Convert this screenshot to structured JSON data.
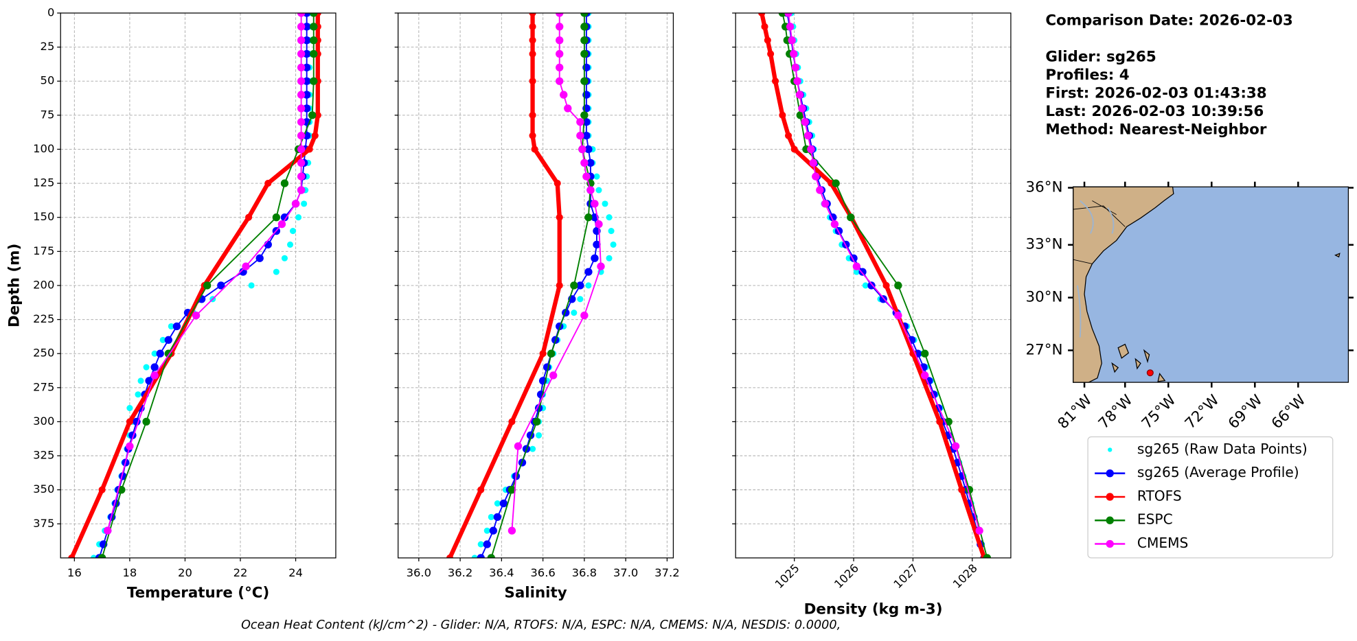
{
  "chart_data": [
    {
      "type": "line",
      "xlabel": "Temperature (°C)",
      "ylabel": "Depth (m)",
      "xlim": [
        15.5,
        25.45
      ],
      "ylim": [
        400,
        0
      ],
      "grid": true,
      "xticks": [
        16,
        18,
        20,
        22,
        24
      ],
      "yticks": [
        0,
        25,
        50,
        75,
        100,
        125,
        150,
        175,
        200,
        225,
        250,
        275,
        300,
        325,
        350,
        375
      ],
      "series": [
        {
          "name": "sg265 (Raw Data Points)",
          "color": "#00ffff",
          "y": [
            0,
            10,
            20,
            30,
            40,
            50,
            60,
            70,
            80,
            90,
            100,
            110,
            120,
            130,
            140,
            150,
            160,
            170,
            180,
            190,
            200,
            210,
            220,
            230,
            240,
            250,
            260,
            270,
            280,
            290,
            300,
            310,
            320,
            330,
            340,
            350,
            360,
            370,
            380,
            390,
            400
          ],
          "values": [
            24.5,
            24.5,
            24.5,
            24.5,
            24.5,
            24.5,
            24.5,
            24.5,
            24.5,
            24.5,
            24.5,
            24.45,
            24.4,
            24.35,
            24.3,
            24.1,
            23.9,
            23.8,
            23.6,
            23.3,
            22.4,
            21.0,
            20.3,
            19.5,
            19.2,
            18.9,
            18.6,
            18.4,
            18.3,
            18.0,
            18.1,
            18.0,
            17.9,
            17.8,
            17.7,
            17.55,
            17.45,
            17.3,
            17.1,
            16.9,
            16.7
          ]
        },
        {
          "name": "sg265 (Average Profile)",
          "color": "#0000ff",
          "y": [
            0,
            10,
            20,
            30,
            40,
            50,
            60,
            70,
            80,
            90,
            100,
            110,
            120,
            130,
            140,
            150,
            160,
            170,
            180,
            190,
            200,
            210,
            220,
            230,
            240,
            250,
            260,
            270,
            280,
            290,
            300,
            310,
            320,
            330,
            340,
            350,
            360,
            370,
            380,
            390,
            400
          ],
          "values": [
            24.4,
            24.4,
            24.4,
            24.4,
            24.4,
            24.4,
            24.4,
            24.4,
            24.4,
            24.4,
            24.35,
            24.3,
            24.25,
            24.2,
            24.0,
            23.6,
            23.3,
            23.0,
            22.7,
            22.1,
            21.3,
            20.6,
            20.1,
            19.7,
            19.4,
            19.1,
            18.9,
            18.7,
            18.55,
            18.4,
            18.25,
            18.1,
            17.95,
            17.85,
            17.75,
            17.6,
            17.5,
            17.35,
            17.2,
            17.05,
            16.9
          ]
        },
        {
          "name": "RTOFS",
          "color": "#ff0000",
          "y": [
            0,
            10,
            20,
            30,
            50,
            75,
            90,
            100,
            125,
            150,
            200,
            250,
            300,
            350,
            400
          ],
          "values": [
            24.8,
            24.8,
            24.8,
            24.8,
            24.8,
            24.8,
            24.7,
            24.5,
            23.0,
            22.3,
            20.7,
            19.5,
            18.0,
            17.0,
            15.9
          ]
        },
        {
          "name": "ESPC",
          "color": "#008000",
          "y": [
            0,
            10,
            20,
            30,
            50,
            75,
            100,
            125,
            150,
            200,
            250,
            300,
            350,
            400
          ],
          "values": [
            24.65,
            24.65,
            24.65,
            24.65,
            24.65,
            24.6,
            24.1,
            23.6,
            23.3,
            20.8,
            19.4,
            18.6,
            17.7,
            17.0
          ]
        },
        {
          "name": "CMEMS",
          "color": "#ff00ff",
          "y": [
            0,
            10,
            20,
            30,
            40,
            50,
            60,
            70,
            80,
            90,
            100,
            110,
            120,
            130,
            140,
            155,
            186,
            222,
            266,
            318,
            380
          ],
          "values": [
            24.2,
            24.2,
            24.2,
            24.2,
            24.2,
            24.2,
            24.2,
            24.2,
            24.2,
            24.2,
            24.2,
            24.2,
            24.2,
            24.2,
            24.0,
            23.5,
            22.2,
            20.4,
            18.9,
            18.0,
            17.2
          ]
        }
      ]
    },
    {
      "type": "line",
      "xlabel": "Salinity",
      "xlim": [
        35.9,
        37.23
      ],
      "ylim": [
        400,
        0
      ],
      "grid": true,
      "xticks": [
        {
          "value": 36,
          "label": "36.0"
        },
        36.2,
        36.4,
        36.6,
        36.8,
        {
          "value": 37,
          "label": "37.0"
        },
        37.2
      ],
      "yticks": [
        0,
        25,
        50,
        75,
        100,
        125,
        150,
        175,
        200,
        225,
        250,
        275,
        300,
        325,
        350,
        375
      ],
      "series": [
        {
          "name": "sg265 (Raw Data Points)",
          "color": "#00ffff",
          "y": [
            0,
            10,
            20,
            30,
            40,
            50,
            60,
            70,
            80,
            90,
            100,
            110,
            120,
            130,
            140,
            150,
            160,
            170,
            180,
            190,
            200,
            210,
            220,
            230,
            240,
            250,
            260,
            270,
            280,
            290,
            300,
            310,
            320,
            330,
            340,
            350,
            360,
            370,
            380,
            390,
            400
          ],
          "values": [
            36.82,
            36.82,
            36.82,
            36.82,
            36.82,
            36.82,
            36.82,
            36.82,
            36.82,
            36.82,
            36.84,
            36.84,
            36.86,
            36.87,
            36.9,
            36.92,
            36.93,
            36.94,
            36.92,
            36.88,
            36.82,
            36.78,
            36.75,
            36.7,
            36.67,
            36.65,
            36.63,
            36.62,
            36.6,
            36.6,
            36.58,
            36.58,
            36.55,
            36.5,
            36.46,
            36.42,
            36.38,
            36.35,
            36.33,
            36.3,
            36.27
          ]
        },
        {
          "name": "sg265 (Average Profile)",
          "color": "#0000ff",
          "y": [
            0,
            10,
            20,
            30,
            40,
            50,
            60,
            70,
            80,
            90,
            100,
            110,
            120,
            130,
            140,
            150,
            160,
            170,
            180,
            190,
            200,
            210,
            220,
            230,
            240,
            250,
            260,
            270,
            280,
            290,
            300,
            310,
            320,
            330,
            340,
            350,
            360,
            370,
            380,
            390,
            400
          ],
          "values": [
            36.81,
            36.81,
            36.81,
            36.81,
            36.81,
            36.81,
            36.81,
            36.81,
            36.81,
            36.81,
            36.82,
            36.83,
            36.83,
            36.83,
            36.83,
            36.85,
            36.86,
            36.86,
            36.85,
            36.82,
            36.78,
            36.74,
            36.71,
            36.68,
            36.66,
            36.64,
            36.62,
            36.6,
            36.59,
            36.58,
            36.56,
            36.54,
            36.52,
            36.5,
            36.47,
            36.44,
            36.41,
            36.38,
            36.36,
            36.33,
            36.3
          ]
        },
        {
          "name": "RTOFS",
          "color": "#ff0000",
          "y": [
            0,
            10,
            20,
            30,
            50,
            75,
            90,
            100,
            125,
            150,
            200,
            250,
            300,
            350,
            400
          ],
          "values": [
            36.55,
            36.55,
            36.55,
            36.55,
            36.55,
            36.55,
            36.55,
            36.56,
            36.67,
            36.68,
            36.68,
            36.6,
            36.45,
            36.3,
            36.15
          ]
        },
        {
          "name": "ESPC",
          "color": "#008000",
          "y": [
            0,
            10,
            20,
            30,
            50,
            75,
            100,
            125,
            150,
            200,
            250,
            300,
            350,
            400
          ],
          "values": [
            36.8,
            36.8,
            36.8,
            36.8,
            36.8,
            36.8,
            36.79,
            36.83,
            36.82,
            36.75,
            36.64,
            36.57,
            36.45,
            36.35
          ]
        },
        {
          "name": "CMEMS",
          "color": "#ff00ff",
          "y": [
            0,
            10,
            20,
            30,
            40,
            50,
            60,
            70,
            80,
            90,
            100,
            110,
            120,
            130,
            140,
            155,
            186,
            222,
            266,
            318,
            380
          ],
          "values": [
            36.68,
            36.68,
            36.68,
            36.68,
            36.68,
            36.68,
            36.7,
            36.72,
            36.78,
            36.78,
            36.79,
            36.8,
            36.81,
            36.83,
            36.85,
            36.87,
            36.88,
            36.8,
            36.65,
            36.48,
            36.45
          ]
        }
      ]
    },
    {
      "type": "line",
      "xlabel": "Density (kg m-3)",
      "xlim": [
        1024.01,
        1028.65
      ],
      "ylim": [
        400,
        0
      ],
      "grid": true,
      "xticks": [
        1025,
        1026,
        1027,
        1028
      ],
      "yticks": [
        0,
        25,
        50,
        75,
        100,
        125,
        150,
        175,
        200,
        225,
        250,
        275,
        300,
        325,
        350,
        375
      ],
      "series": [
        {
          "name": "sg265 (Raw Data Points)",
          "color": "#00ffff",
          "y": [
            0,
            10,
            20,
            30,
            40,
            50,
            60,
            70,
            80,
            90,
            100,
            110,
            120,
            130,
            140,
            150,
            160,
            170,
            180,
            190,
            200,
            210,
            220,
            230,
            240,
            250,
            260,
            270,
            280,
            290,
            300,
            310,
            320,
            330,
            340,
            350,
            360,
            370,
            380,
            390,
            400
          ],
          "values": [
            1024.95,
            1024.98,
            1025.0,
            1025.03,
            1025.06,
            1025.1,
            1025.15,
            1025.2,
            1025.25,
            1025.3,
            1025.33,
            1025.36,
            1025.4,
            1025.45,
            1025.5,
            1025.6,
            1025.7,
            1025.8,
            1025.92,
            1026.05,
            1026.2,
            1026.45,
            1026.75,
            1026.9,
            1027.02,
            1027.12,
            1027.22,
            1027.3,
            1027.38,
            1027.46,
            1027.53,
            1027.62,
            1027.7,
            1027.78,
            1027.85,
            1027.92,
            1027.98,
            1028.04,
            1028.1,
            1028.16,
            1028.22
          ]
        },
        {
          "name": "sg265 (Average Profile)",
          "color": "#0000ff",
          "y": [
            0,
            10,
            20,
            30,
            40,
            50,
            60,
            70,
            80,
            90,
            100,
            110,
            120,
            130,
            140,
            150,
            160,
            170,
            180,
            190,
            200,
            210,
            220,
            230,
            240,
            250,
            260,
            270,
            280,
            290,
            300,
            310,
            320,
            330,
            340,
            350,
            360,
            370,
            380,
            390,
            400
          ],
          "values": [
            1024.88,
            1024.92,
            1024.95,
            1024.98,
            1025.02,
            1025.05,
            1025.1,
            1025.15,
            1025.2,
            1025.25,
            1025.3,
            1025.34,
            1025.38,
            1025.46,
            1025.55,
            1025.65,
            1025.75,
            1025.87,
            1026.0,
            1026.15,
            1026.3,
            1026.5,
            1026.72,
            1026.86,
            1026.98,
            1027.08,
            1027.18,
            1027.27,
            1027.35,
            1027.43,
            1027.5,
            1027.59,
            1027.68,
            1027.75,
            1027.82,
            1027.89,
            1027.95,
            1028.02,
            1028.08,
            1028.14,
            1028.2
          ]
        },
        {
          "name": "RTOFS",
          "color": "#ff0000",
          "y": [
            0,
            10,
            20,
            30,
            50,
            75,
            90,
            100,
            125,
            150,
            200,
            250,
            300,
            350,
            400
          ],
          "values": [
            1024.45,
            1024.5,
            1024.55,
            1024.6,
            1024.68,
            1024.8,
            1024.9,
            1025.0,
            1025.62,
            1025.96,
            1026.55,
            1027.0,
            1027.45,
            1027.82,
            1028.2
          ]
        },
        {
          "name": "ESPC",
          "color": "#008000",
          "y": [
            0,
            10,
            20,
            30,
            50,
            75,
            100,
            125,
            150,
            200,
            250,
            300,
            350,
            400
          ],
          "values": [
            1024.8,
            1024.85,
            1024.88,
            1024.92,
            1025.0,
            1025.1,
            1025.2,
            1025.7,
            1025.95,
            1026.75,
            1027.2,
            1027.6,
            1027.95,
            1028.25
          ]
        },
        {
          "name": "CMEMS",
          "color": "#ff00ff",
          "y": [
            0,
            10,
            20,
            30,
            40,
            50,
            60,
            70,
            80,
            90,
            100,
            110,
            120,
            130,
            140,
            155,
            186,
            222,
            266,
            318,
            380
          ],
          "values": [
            1024.9,
            1024.93,
            1024.96,
            1024.99,
            1025.02,
            1025.05,
            1025.09,
            1025.13,
            1025.18,
            1025.23,
            1025.28,
            1025.32,
            1025.36,
            1025.43,
            1025.52,
            1025.68,
            1026.05,
            1026.75,
            1027.2,
            1027.72,
            1028.12
          ]
        }
      ]
    }
  ],
  "info": [
    "Comparison Date: 2026-02-03",
    "Glider: sg265",
    "Profiles: 4",
    "First: 2026-02-03 01:43:38",
    "Last: 2026-02-03 10:39:56",
    "Method: Nearest-Neighbor"
  ],
  "map": {
    "lat_labels": [
      "36°N",
      "33°N",
      "30°N",
      "27°N"
    ],
    "lon_labels": [
      "81°W",
      "78°W",
      "75°W",
      "72°W",
      "69°W",
      "66°W"
    ]
  },
  "footer": "Ocean Heat Content (kJ/cm^2) - Glider: N/A,  RTOFS: N/A,  ESPC: N/A,  CMEMS: N/A,  NESDIS: 0.0000,"
}
